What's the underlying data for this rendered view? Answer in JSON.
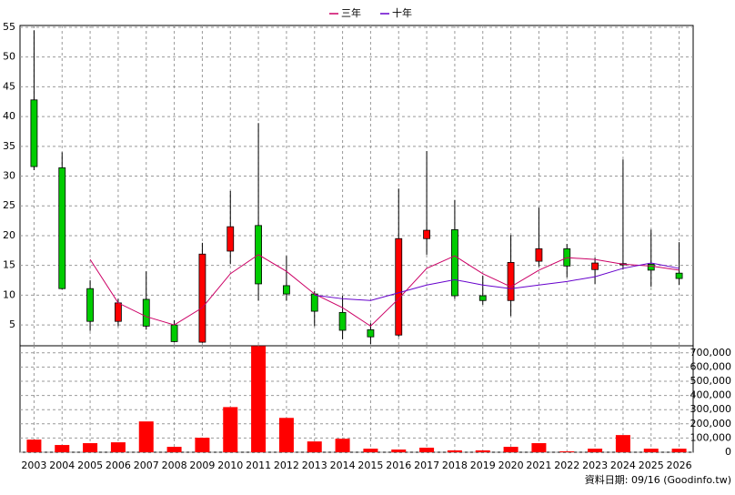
{
  "chart_data": {
    "type": "candlestick",
    "categories": [
      "2003",
      "2004",
      "2005",
      "2006",
      "2007",
      "2008",
      "2009",
      "2010",
      "2011",
      "2012",
      "2013",
      "2014",
      "2015",
      "2016",
      "2017",
      "2018",
      "2019",
      "2020",
      "2021",
      "2022",
      "2023",
      "2024",
      "2025",
      "2026"
    ],
    "open": [
      42.8,
      31.4,
      11.1,
      5.6,
      9.3,
      5.0,
      2.1,
      17.4,
      21.7,
      11.6,
      10.2,
      7.1,
      4.2,
      3.3,
      19.5,
      21.0,
      9.9,
      9.1,
      15.7,
      17.8,
      14.3,
      15.1,
      15.2,
      13.7
    ],
    "high": [
      54.5,
      34.0,
      12.5,
      9.4,
      14.0,
      5.8,
      18.8,
      27.5,
      38.9,
      16.6,
      10.7,
      9.9,
      5.3,
      27.9,
      34.2,
      26.0,
      13.3,
      20.1,
      24.7,
      18.6,
      16.3,
      32.8,
      21.0,
      18.9
    ],
    "low": [
      31.0,
      11.0,
      4.0,
      4.8,
      4.2,
      2.1,
      2.0,
      15.2,
      9.1,
      9.1,
      4.8,
      2.6,
      1.8,
      3.0,
      16.8,
      9.4,
      8.4,
      6.5,
      14.8,
      13.0,
      11.9,
      14.3,
      11.4,
      11.7
    ],
    "close": [
      31.6,
      11.1,
      5.6,
      8.7,
      4.8,
      2.2,
      16.9,
      21.5,
      11.9,
      10.2,
      7.3,
      4.1,
      3.0,
      19.5,
      20.9,
      9.9,
      9.1,
      15.5,
      17.8,
      14.9,
      15.4,
      15.3,
      14.2,
      12.8
    ],
    "up_color": "#ff0000",
    "down_color": "#00cc00",
    "series": [
      {
        "name": "三年",
        "color": "#cc0066",
        "values": [
          null,
          null,
          16.0,
          8.7,
          6.4,
          5.0,
          7.9,
          13.6,
          16.8,
          14.0,
          10.2,
          7.9,
          4.8,
          9.4,
          14.5,
          16.6,
          13.6,
          11.4,
          14.2,
          16.3,
          16.0,
          15.2,
          14.9,
          14.2
        ]
      },
      {
        "name": "十年",
        "color": "#6600cc",
        "values": [
          null,
          null,
          null,
          null,
          null,
          null,
          null,
          null,
          null,
          null,
          10.0,
          9.4,
          9.1,
          10.4,
          11.7,
          12.6,
          11.7,
          11.1,
          11.7,
          12.3,
          13.1,
          14.5,
          15.4,
          14.5
        ]
      }
    ],
    "ylim": [
      1.5,
      55.3
    ],
    "yticks": [
      5,
      10,
      15,
      20,
      25,
      30,
      35,
      40,
      45,
      50,
      55
    ],
    "grid": true,
    "volume": {
      "type": "bar",
      "color": "#ff0000",
      "values": [
        89000,
        51000,
        64000,
        70000,
        217000,
        38000,
        102000,
        318000,
        748000,
        242000,
        76000,
        95000,
        25000,
        19000,
        32000,
        13000,
        13000,
        38000,
        64000,
        6000,
        25000,
        121000,
        25000,
        25000
      ],
      "ylim": [
        0,
        750000
      ],
      "yticks": [
        0,
        {
          "value": 100000,
          "label": "100,000"
        },
        {
          "value": 200000,
          "label": "200,000"
        },
        {
          "value": 300000,
          "label": "300,000"
        },
        {
          "value": 400000,
          "label": "400,000"
        },
        {
          "value": 500000,
          "label": "500,000"
        },
        {
          "value": 600000,
          "label": "600,000"
        },
        {
          "value": 700000,
          "label": "700,000"
        }
      ]
    },
    "footnote": "資料日期: 09/16 (Goodinfo.tw)"
  }
}
